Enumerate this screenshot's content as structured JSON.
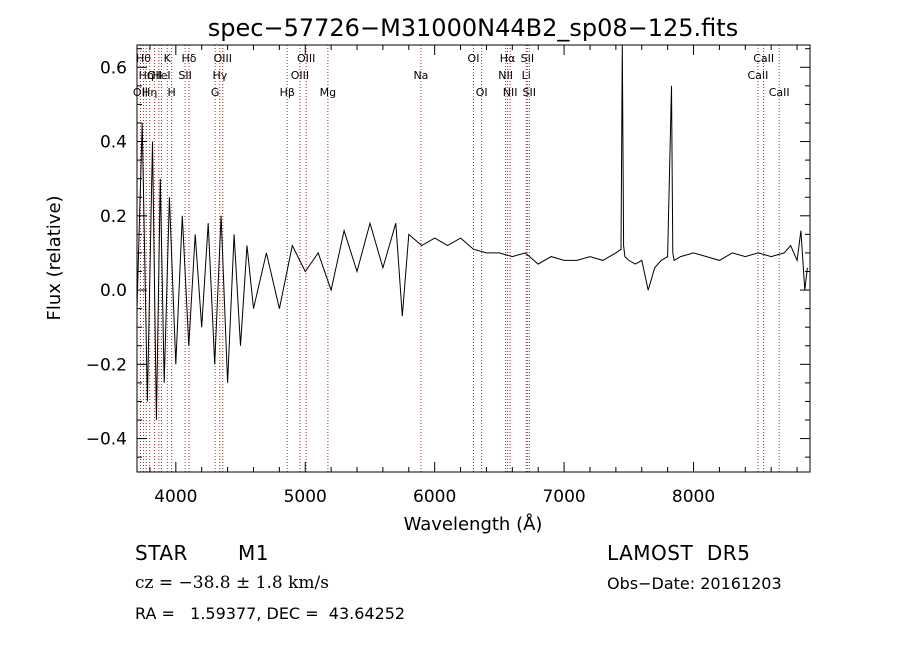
{
  "chart_data": {
    "type": "line",
    "title": "spec−57726−M31000N44B2_sp08−125.fits",
    "xlabel": "Wavelength (Å)",
    "ylabel": "Flux (relative)",
    "xlim": [
      3700,
      8900
    ],
    "ylim": [
      -0.49,
      0.66
    ],
    "xticks": [
      4000,
      5000,
      6000,
      7000,
      8000
    ],
    "yticks": [
      -0.4,
      -0.2,
      0.0,
      0.2,
      0.4,
      0.6
    ],
    "ytick_labels": [
      "−0.4",
      "−0.2",
      "0.0",
      "0.2",
      "0.4",
      "0.6"
    ],
    "grid": false,
    "series": [
      {
        "x": [
          3700,
          3740,
          3780,
          3820,
          3850,
          3880,
          3910,
          3950,
          4000,
          4050,
          4100,
          4150,
          4200,
          4250,
          4300,
          4350,
          4400,
          4450,
          4500,
          4550,
          4600,
          4700,
          4800,
          4900,
          5000,
          5100,
          5200,
          5300,
          5400,
          5500,
          5600,
          5700,
          5750,
          5800,
          5900,
          6000,
          6100,
          6200,
          6300,
          6400,
          6500,
          6600,
          6700,
          6800,
          6900,
          7000,
          7100,
          7200,
          7300,
          7400,
          7440,
          7450,
          7460,
          7470,
          7500,
          7550,
          7600,
          7650,
          7700,
          7750,
          7800,
          7830,
          7840,
          7850,
          7900,
          8000,
          8100,
          8200,
          8300,
          8400,
          8500,
          8600,
          8700,
          8750,
          8800,
          8830,
          8860,
          8880
        ],
        "y": [
          -0.05,
          0.45,
          -0.3,
          0.4,
          -0.35,
          0.3,
          -0.25,
          0.25,
          -0.2,
          0.2,
          -0.15,
          0.15,
          -0.1,
          0.18,
          -0.2,
          0.2,
          -0.25,
          0.15,
          -0.15,
          0.12,
          -0.05,
          0.1,
          -0.05,
          0.12,
          0.05,
          0.1,
          0.0,
          0.16,
          0.05,
          0.18,
          0.06,
          0.18,
          -0.07,
          0.15,
          0.12,
          0.14,
          0.12,
          0.14,
          0.11,
          0.1,
          0.1,
          0.09,
          0.1,
          0.07,
          0.09,
          0.08,
          0.08,
          0.09,
          0.08,
          0.1,
          0.11,
          0.66,
          0.12,
          0.09,
          0.08,
          0.07,
          0.08,
          0.0,
          0.06,
          0.08,
          0.09,
          0.55,
          0.1,
          0.08,
          0.09,
          0.1,
          0.09,
          0.08,
          0.1,
          0.09,
          0.1,
          0.09,
          0.1,
          0.12,
          0.08,
          0.16,
          0.0,
          0.06
        ]
      }
    ],
    "lines": [
      {
        "wl": 3727,
        "label": "OII",
        "row": 2
      },
      {
        "wl": 3750,
        "label": "Hθ",
        "row": 0
      },
      {
        "wl": 3771,
        "label": "Hη",
        "row": 1
      },
      {
        "wl": 3798,
        "label": "Hη",
        "row": 2
      },
      {
        "wl": 3835,
        "label": "OII",
        "row": 1
      },
      {
        "wl": 3869,
        "label": "",
        "row": 0
      },
      {
        "wl": 3889,
        "label": "HeI",
        "row": 1
      },
      {
        "wl": 3934,
        "label": "K",
        "row": 0
      },
      {
        "wl": 3968,
        "label": "H",
        "row": 2
      },
      {
        "wl": 4102,
        "label": "Hδ",
        "row": 0
      },
      {
        "wl": 4072,
        "label": "SII",
        "row": 1
      },
      {
        "wl": 4304,
        "label": "G",
        "row": 2
      },
      {
        "wl": 4340,
        "label": "Hγ",
        "row": 1
      },
      {
        "wl": 4363,
        "label": "OIII",
        "row": 0
      },
      {
        "wl": 4861,
        "label": "Hβ",
        "row": 2
      },
      {
        "wl": 4959,
        "label": "OIII",
        "row": 1
      },
      {
        "wl": 5007,
        "label": "OIII",
        "row": 0
      },
      {
        "wl": 5175,
        "label": "Mg",
        "row": 2
      },
      {
        "wl": 5894,
        "label": "Na",
        "row": 1
      },
      {
        "wl": 6300,
        "label": "OI",
        "row": 0
      },
      {
        "wl": 6363,
        "label": "OI",
        "row": 2
      },
      {
        "wl": 6548,
        "label": "NII",
        "row": 1
      },
      {
        "wl": 6563,
        "label": "Hα",
        "row": 0
      },
      {
        "wl": 6583,
        "label": "NII",
        "row": 2
      },
      {
        "wl": 6707,
        "label": "Li",
        "row": 1
      },
      {
        "wl": 6716,
        "label": "SII",
        "row": 0
      },
      {
        "wl": 6731,
        "label": "SII",
        "row": 2
      },
      {
        "wl": 8498,
        "label": "CaII",
        "row": 1
      },
      {
        "wl": 8542,
        "label": "CaII",
        "row": 0
      },
      {
        "wl": 8662,
        "label": "CaII",
        "row": 2
      }
    ]
  },
  "info": {
    "object_class": "STAR",
    "subclass": "M1",
    "survey": "LAMOST  DR5",
    "redshift": "cz = −38.8 ± 1.8 km/s",
    "obs_date": "Obs−Date: 20161203",
    "coords": "RA =   1.59377, DEC =  43.64252"
  },
  "colors": {
    "spectrum": "#000000",
    "line_markers": "#a0302c",
    "axes": "#000000"
  }
}
